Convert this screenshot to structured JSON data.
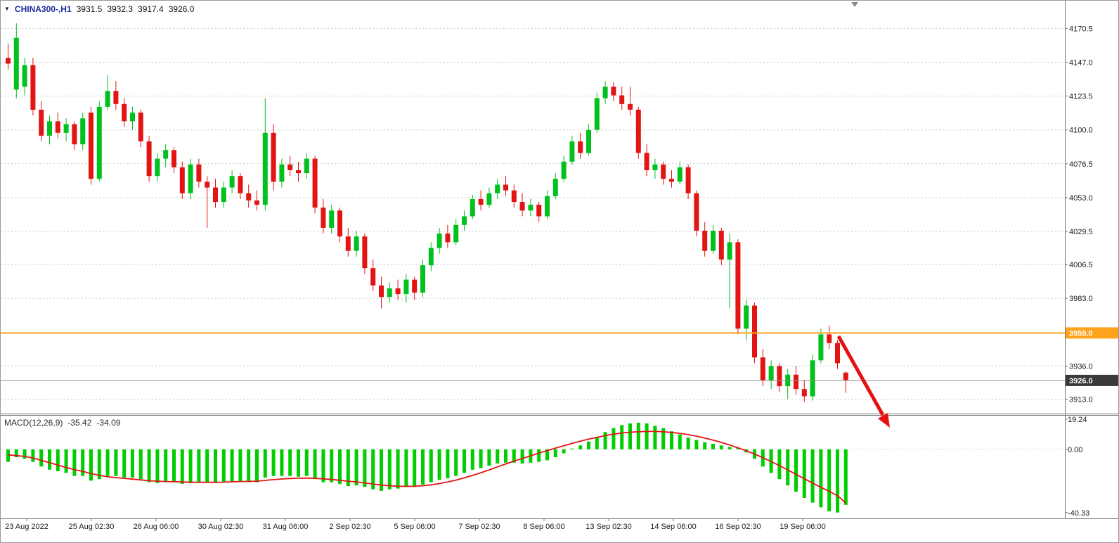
{
  "header": {
    "dropdown_icon": "▼",
    "symbol": "CHINA300-,H1",
    "open": "3931.5",
    "high": "3932.3",
    "low": "3917.4",
    "close": "3926.0"
  },
  "macd_header": {
    "title": "MACD(12,26,9)",
    "macd_value": "-35.42",
    "signal_value": "-34.09"
  },
  "colors": {
    "candle_up": "#00C11E",
    "candle_down": "#E21414",
    "macd_histogram": "#00CE00",
    "macd_signal": "#E21414",
    "resistance_line": "#FFA21E",
    "resistance_tag_bg": "#FFA21E",
    "current_price_line": "#8C8C8C",
    "current_price_tag_bg": "#3A3A3A",
    "arrow": "#E80F0F",
    "grid": "#C9C9C9",
    "axis_text": "#1A1A1A",
    "separator": "#7A7A7A",
    "symbol_text": "#1D2B9E"
  },
  "chart_data": {
    "type": "candlestick",
    "symbol": "CHINA300-",
    "timeframe": "H1",
    "current_bar": {
      "open": 3931.5,
      "high": 3932.3,
      "low": 3917.4,
      "close": 3926.0
    },
    "price_axis_labels": [
      "4170.5",
      "4147.0",
      "4123.5",
      "4100.0",
      "4076.5",
      "4053.0",
      "4029.5",
      "4006.5",
      "3983.0",
      "3936.0",
      "3913.0"
    ],
    "price_axis_values": [
      4170.5,
      4147.0,
      4123.5,
      4100.0,
      4076.5,
      4053.0,
      4029.5,
      4006.5,
      3983.0,
      3936.0,
      3913.0
    ],
    "price_range": [
      3903,
      4178
    ],
    "resistance_line": {
      "price": 3959.0,
      "label": "3959.0"
    },
    "current_price": {
      "price": 3926.0,
      "label": "3926.0"
    },
    "time_labels": [
      "23 Aug 2022",
      "25 Aug 02:30",
      "26 Aug 06:00",
      "30 Aug 02:30",
      "31 Aug 06:00",
      "2 Sep 02:30",
      "5 Sep 06:00",
      "7 Sep 02:30",
      "8 Sep 06:00",
      "13 Sep 02:30",
      "14 Sep 06:00",
      "16 Sep 02:30",
      "19 Sep 06:00"
    ],
    "candles": [
      [
        4150,
        4160,
        4142,
        4146
      ],
      [
        4128,
        4174,
        4122,
        4164
      ],
      [
        4130,
        4150,
        4124,
        4145
      ],
      [
        4145,
        4150,
        4110,
        4114
      ],
      [
        4114,
        4120,
        4092,
        4096
      ],
      [
        4096,
        4110,
        4090,
        4106
      ],
      [
        4106,
        4112,
        4094,
        4098
      ],
      [
        4098,
        4108,
        4092,
        4104
      ],
      [
        4104,
        4106,
        4086,
        4090
      ],
      [
        4090,
        4112,
        4086,
        4108
      ],
      [
        4112,
        4116,
        4062,
        4066
      ],
      [
        4066,
        4120,
        4064,
        4116
      ],
      [
        4116,
        4138,
        4114,
        4127
      ],
      [
        4127,
        4134,
        4114,
        4118
      ],
      [
        4118,
        4122,
        4102,
        4106
      ],
      [
        4106,
        4116,
        4100,
        4112
      ],
      [
        4112,
        4114,
        4088,
        4092
      ],
      [
        4092,
        4096,
        4064,
        4068
      ],
      [
        4068,
        4084,
        4064,
        4080
      ],
      [
        4080,
        4090,
        4074,
        4086
      ],
      [
        4086,
        4088,
        4070,
        4074
      ],
      [
        4074,
        4078,
        4052,
        4056
      ],
      [
        4056,
        4080,
        4052,
        4076
      ],
      [
        4076,
        4080,
        4060,
        4064
      ],
      [
        4064,
        4068,
        4032,
        4060
      ],
      [
        4060,
        4066,
        4046,
        4050
      ],
      [
        4050,
        4064,
        4046,
        4060
      ],
      [
        4060,
        4072,
        4056,
        4068
      ],
      [
        4068,
        4070,
        4052,
        4056
      ],
      [
        4056,
        4062,
        4046,
        4051
      ],
      [
        4051,
        4058,
        4044,
        4048
      ],
      [
        4048,
        4122,
        4044,
        4098
      ],
      [
        4098,
        4104,
        4058,
        4064
      ],
      [
        4064,
        4080,
        4060,
        4076
      ],
      [
        4076,
        4082,
        4068,
        4072
      ],
      [
        4072,
        4078,
        4064,
        4070
      ],
      [
        4070,
        4084,
        4066,
        4080
      ],
      [
        4080,
        4082,
        4042,
        4046
      ],
      [
        4046,
        4052,
        4028,
        4032
      ],
      [
        4032,
        4048,
        4028,
        4044
      ],
      [
        4044,
        4046,
        4022,
        4026
      ],
      [
        4026,
        4032,
        4012,
        4016
      ],
      [
        4016,
        4030,
        4012,
        4026
      ],
      [
        4026,
        4028,
        4000,
        4004
      ],
      [
        4004,
        4010,
        3988,
        3992
      ],
      [
        3992,
        3998,
        3976,
        3984
      ],
      [
        3984,
        3994,
        3980,
        3990
      ],
      [
        3990,
        3996,
        3982,
        3986
      ],
      [
        3986,
        4000,
        3980,
        3996
      ],
      [
        3996,
        3998,
        3982,
        3987
      ],
      [
        3987,
        4010,
        3984,
        4006
      ],
      [
        4006,
        4022,
        4002,
        4018
      ],
      [
        4018,
        4032,
        4014,
        4028
      ],
      [
        4028,
        4034,
        4018,
        4022
      ],
      [
        4022,
        4038,
        4020,
        4034
      ],
      [
        4034,
        4044,
        4030,
        4040
      ],
      [
        4040,
        4055,
        4038,
        4052
      ],
      [
        4052,
        4058,
        4044,
        4048
      ],
      [
        4048,
        4060,
        4046,
        4056
      ],
      [
        4056,
        4066,
        4052,
        4062
      ],
      [
        4062,
        4068,
        4054,
        4058
      ],
      [
        4058,
        4062,
        4046,
        4050
      ],
      [
        4050,
        4056,
        4040,
        4044
      ],
      [
        4044,
        4052,
        4040,
        4048
      ],
      [
        4048,
        4050,
        4036,
        4040
      ],
      [
        4040,
        4058,
        4038,
        4054
      ],
      [
        4054,
        4070,
        4052,
        4066
      ],
      [
        4066,
        4082,
        4064,
        4078
      ],
      [
        4078,
        4096,
        4076,
        4092
      ],
      [
        4092,
        4098,
        4080,
        4084
      ],
      [
        4084,
        4104,
        4082,
        4100
      ],
      [
        4100,
        4126,
        4098,
        4122
      ],
      [
        4122,
        4134,
        4118,
        4130
      ],
      [
        4130,
        4133,
        4120,
        4124
      ],
      [
        4124,
        4130,
        4114,
        4118
      ],
      [
        4118,
        4130,
        4110,
        4114
      ],
      [
        4114,
        4116,
        4080,
        4084
      ],
      [
        4084,
        4090,
        4068,
        4072
      ],
      [
        4072,
        4080,
        4066,
        4076
      ],
      [
        4076,
        4078,
        4062,
        4066
      ],
      [
        4066,
        4072,
        4060,
        4064
      ],
      [
        4064,
        4078,
        4062,
        4074
      ],
      [
        4074,
        4076,
        4052,
        4056
      ],
      [
        4056,
        4058,
        4026,
        4030
      ],
      [
        4030,
        4036,
        4012,
        4016
      ],
      [
        4016,
        4034,
        4014,
        4030
      ],
      [
        4030,
        4032,
        4006,
        4010
      ],
      [
        4010,
        4028,
        3976,
        4022
      ],
      [
        4022,
        4024,
        3958,
        3962
      ],
      [
        3962,
        3982,
        3954,
        3978
      ],
      [
        3978,
        3980,
        3938,
        3942
      ],
      [
        3942,
        3948,
        3922,
        3926
      ],
      [
        3926,
        3940,
        3920,
        3936
      ],
      [
        3936,
        3938,
        3918,
        3922
      ],
      [
        3922,
        3934,
        3913,
        3930
      ],
      [
        3930,
        3936,
        3916,
        3920
      ],
      [
        3920,
        3926,
        3911,
        3915
      ],
      [
        3915,
        3944,
        3912,
        3940
      ],
      [
        3940,
        3962,
        3938,
        3958
      ],
      [
        3958,
        3964,
        3948,
        3952
      ],
      [
        3952,
        3954,
        3934,
        3938
      ],
      [
        3931.5,
        3932.3,
        3917.4,
        3926.0
      ]
    ],
    "macd": {
      "title": "MACD(12,26,9)",
      "value": -35.42,
      "signal_value": -34.09,
      "axis_labels": [
        "19.24",
        "0.00",
        "-40.33"
      ],
      "axis_values": [
        19.24,
        0,
        -40.33
      ],
      "range": [
        -44,
        21
      ],
      "histogram": [
        -8,
        -5,
        -6,
        -8,
        -11,
        -13,
        -14,
        -15,
        -17,
        -17,
        -20,
        -19,
        -17,
        -17,
        -18,
        -18,
        -19,
        -21,
        -21.5,
        -21,
        -21,
        -22,
        -21.5,
        -21,
        -21,
        -21.5,
        -21,
        -20.5,
        -20.5,
        -21,
        -21,
        -18,
        -17,
        -17,
        -17,
        -17.5,
        -17,
        -19,
        -21,
        -21,
        -22,
        -23.5,
        -23,
        -24,
        -25.5,
        -26.5,
        -25.5,
        -25,
        -24,
        -24,
        -22.5,
        -21,
        -19.5,
        -18.5,
        -17,
        -15,
        -13,
        -12,
        -10.5,
        -9,
        -8.5,
        -8.5,
        -9,
        -8.5,
        -8,
        -7,
        -5,
        -2.5,
        0.5,
        2.5,
        5,
        8,
        11,
        13.5,
        15.5,
        16.5,
        17,
        16.5,
        15,
        13.5,
        11.5,
        9.5,
        7.5,
        6,
        4.5,
        3.5,
        2.5,
        1.5,
        0.8,
        -2,
        -6,
        -11,
        -15,
        -19,
        -23,
        -27,
        -31,
        -34,
        -37,
        -39.5,
        -40.3,
        -35.42
      ],
      "signal": [
        -3.5,
        -4,
        -4.5,
        -5.5,
        -7,
        -8.5,
        -10,
        -11.5,
        -13,
        -14,
        -15.5,
        -16.5,
        -17.5,
        -18,
        -18.5,
        -19,
        -19.5,
        -20,
        -20.3,
        -20.5,
        -20.6,
        -20.8,
        -21,
        -21,
        -21,
        -21,
        -20.9,
        -20.7,
        -20.5,
        -20.4,
        -20.3,
        -19.8,
        -19.3,
        -18.9,
        -18.6,
        -18.4,
        -18.3,
        -18.5,
        -18.8,
        -19.2,
        -19.7,
        -20.3,
        -20.8,
        -21.4,
        -22.1,
        -22.8,
        -23.2,
        -23.5,
        -23.6,
        -23.5,
        -23.2,
        -22.6,
        -21.8,
        -20.8,
        -19.6,
        -18.2,
        -16.6,
        -14.9,
        -13.1,
        -11.2,
        -9.3,
        -7.5,
        -5.8,
        -4.1,
        -2.4,
        -0.8,
        0.8,
        2.3,
        3.8,
        5.2,
        6.5,
        7.7,
        8.8,
        9.7,
        10.4,
        10.9,
        11.2,
        11.4,
        11.4,
        11.2,
        10.8,
        10.2,
        9.4,
        8.4,
        7.2,
        5.9,
        4.4,
        2.8,
        1.0,
        -0.9,
        -3.0,
        -5.3,
        -7.8,
        -10.4,
        -13.1,
        -15.9,
        -18.7,
        -21.5,
        -24.2,
        -26.8,
        -29.5,
        -34.09
      ]
    },
    "annotations": [
      {
        "type": "arrow",
        "direction": "down-right",
        "color": "#E80F0F"
      }
    ]
  }
}
